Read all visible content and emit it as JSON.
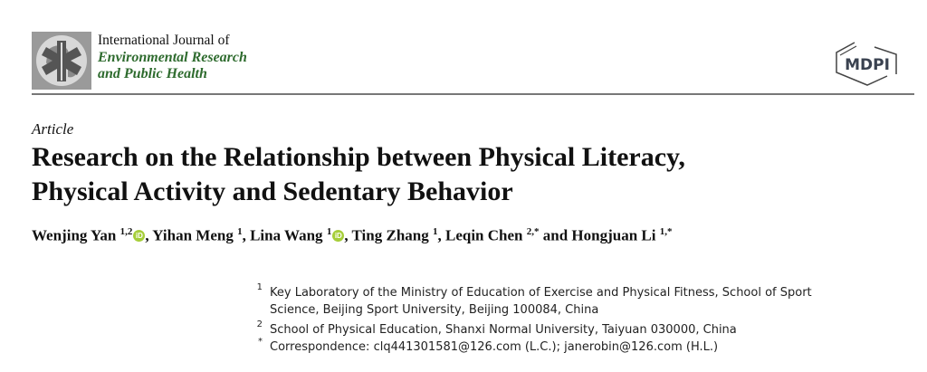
{
  "journal": {
    "line1": "International Journal of",
    "line2": "Environmental Research",
    "line3": "and Public Health"
  },
  "publisher": {
    "logo_text": "MDPI"
  },
  "article_type": "Article",
  "title": {
    "line1": "Research on the Relationship between Physical Literacy,",
    "line2": "Physical Activity and Sedentary Behavior"
  },
  "authors": [
    {
      "name": "Wenjing Yan",
      "sup": "1,2",
      "orcid": true,
      "sep": ", "
    },
    {
      "name": "Yihan Meng",
      "sup": "1",
      "sep": ", "
    },
    {
      "name": "Lina Wang",
      "sup": "1",
      "orcid": true,
      "sep": ", "
    },
    {
      "name": "Ting Zhang",
      "sup": "1",
      "sep": ", "
    },
    {
      "name": "Leqin Chen",
      "sup": "2,*",
      "sep": " and "
    },
    {
      "name": "Hongjuan Li",
      "sup": "1,*",
      "sep": ""
    }
  ],
  "affiliations": [
    {
      "num": "1",
      "line1": "Key Laboratory of the Ministry of Education of Exercise and Physical Fitness, School of Sport",
      "line2": "Science, Beijing Sport University, Beijing 100084, China"
    },
    {
      "num": "2",
      "line1": "School of Physical Education, Shanxi Normal University, Taiyuan 030000, China"
    },
    {
      "num": "*",
      "line1": "Correspondence: clq441301581@126.com (L.C.); janerobin@126.com (H.L.)"
    }
  ]
}
